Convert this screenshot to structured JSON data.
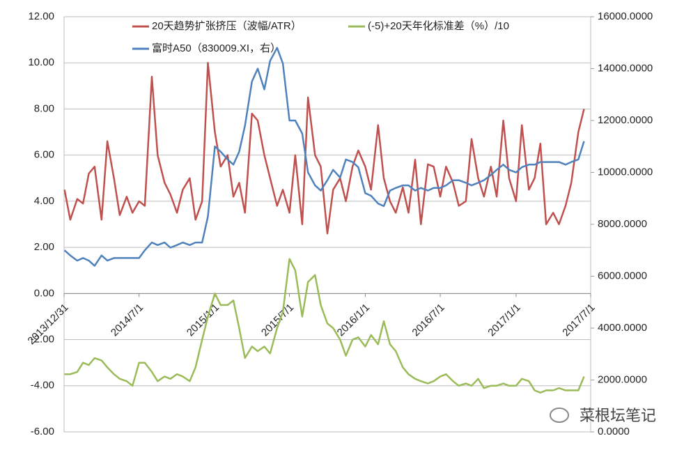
{
  "chart_data": {
    "type": "line",
    "x": [
      "2014/1/1",
      "2014/1/15",
      "2014/2/1",
      "2014/2/15",
      "2014/3/1",
      "2014/3/15",
      "2014/4/1",
      "2014/4/15",
      "2014/5/1",
      "2014/5/15",
      "2014/6/1",
      "2014/6/15",
      "2014/7/1",
      "2014/7/15",
      "2014/8/1",
      "2014/8/15",
      "2014/9/1",
      "2014/9/15",
      "2014/10/1",
      "2014/10/15",
      "2014/11/1",
      "2014/11/15",
      "2014/12/1",
      "2014/12/15",
      "2015/1/1",
      "2015/1/15",
      "2015/2/1",
      "2015/2/15",
      "2015/3/1",
      "2015/3/15",
      "2015/4/1",
      "2015/4/15",
      "2015/5/1",
      "2015/5/15",
      "2015/6/1",
      "2015/6/15",
      "2015/7/1",
      "2015/7/15",
      "2015/8/1",
      "2015/8/15",
      "2015/9/1",
      "2015/9/15",
      "2015/10/1",
      "2015/10/15",
      "2015/11/1",
      "2015/11/15",
      "2015/12/1",
      "2015/12/15",
      "2016/1/1",
      "2016/1/15",
      "2016/2/1",
      "2016/2/15",
      "2016/3/1",
      "2016/3/15",
      "2016/4/1",
      "2016/4/15",
      "2016/5/1",
      "2016/5/15",
      "2016/6/1",
      "2016/6/15",
      "2016/7/1",
      "2016/7/15",
      "2016/8/1",
      "2016/8/15",
      "2016/9/1",
      "2016/9/15",
      "2016/10/1",
      "2016/10/15",
      "2016/11/1",
      "2016/11/15",
      "2016/12/1",
      "2016/12/15",
      "2017/1/1",
      "2017/1/15",
      "2017/2/1",
      "2017/2/15",
      "2017/3/1",
      "2017/3/15",
      "2017/4/1",
      "2017/4/15",
      "2017/5/1",
      "2017/5/15",
      "2017/6/1",
      "2017/6/15"
    ],
    "series": [
      {
        "name": "20天趋势扩张挤压（波幅/ATR）",
        "color": "#c0504d",
        "values": [
          4.5,
          3.2,
          4.1,
          3.9,
          5.2,
          5.5,
          3.2,
          6.6,
          5.0,
          3.4,
          4.2,
          3.5,
          4.0,
          3.8,
          9.4,
          6.0,
          4.8,
          4.3,
          3.5,
          4.5,
          5.0,
          3.2,
          4.0,
          10.0,
          7.0,
          5.5,
          6.0,
          4.2,
          4.8,
          3.5,
          7.8,
          7.5,
          6.0,
          5.0,
          3.8,
          4.5,
          3.5,
          6.0,
          3.0,
          8.5,
          6.0,
          5.5,
          2.6,
          4.5,
          5.0,
          4.0,
          5.5,
          6.2,
          5.5,
          4.5,
          7.3,
          5.0,
          4.0,
          3.5,
          4.6,
          3.5,
          5.8,
          3.0,
          5.6,
          5.5,
          4.2,
          5.5,
          4.8,
          3.8,
          4.0,
          6.7,
          5.0,
          4.2,
          5.5,
          4.2,
          7.5,
          5.0,
          4.0,
          7.3,
          4.5,
          5.0,
          6.5,
          3.0,
          3.5,
          3.0,
          3.8,
          4.8,
          7.0,
          8.0
        ]
      },
      {
        "name": "(-5)+20天年化标准差（%）/10",
        "color": "#9bbb59",
        "values": [
          -3.5,
          -3.5,
          -3.4,
          -3.0,
          -3.1,
          -2.8,
          -2.9,
          -3.2,
          -3.5,
          -3.7,
          -3.8,
          -4.0,
          -3.0,
          -3.0,
          -3.4,
          -3.8,
          -3.6,
          -3.7,
          -3.5,
          -3.6,
          -3.8,
          -3.2,
          -2.0,
          -1.0,
          0.0,
          -0.5,
          -0.5,
          -0.3,
          -1.5,
          -2.8,
          -2.3,
          -2.5,
          -2.3,
          -2.6,
          -1.5,
          -0.8,
          1.5,
          1.0,
          -1.0,
          0.5,
          0.8,
          -0.5,
          -1.3,
          -1.5,
          -2.0,
          -2.7,
          -2.0,
          -1.9,
          -2.3,
          -1.8,
          -2.2,
          -1.2,
          -2.2,
          -2.5,
          -3.2,
          -3.5,
          -3.7,
          -3.8,
          -3.9,
          -3.8,
          -3.6,
          -3.5,
          -3.8,
          -4.0,
          -3.9,
          -4.0,
          -3.7,
          -4.1,
          -4.0,
          -4.0,
          -3.9,
          -4.0,
          -4.0,
          -3.7,
          -3.8,
          -4.2,
          -4.3,
          -4.2,
          -4.2,
          -4.1,
          -4.2,
          -4.2,
          -4.2,
          -3.6
        ]
      },
      {
        "name": "富时A50（830009.XI，右）",
        "color": "#4f81bd",
        "axis": "y2",
        "values": [
          7000,
          6800,
          6600,
          6700,
          6600,
          6400,
          6800,
          6600,
          6700,
          6700,
          6700,
          6700,
          6700,
          7000,
          7300,
          7200,
          7300,
          7100,
          7200,
          7300,
          7200,
          7300,
          7300,
          8300,
          11000,
          10800,
          10500,
          10300,
          10800,
          11800,
          13500,
          14000,
          13200,
          14300,
          14800,
          14200,
          12000,
          12000,
          11500,
          10000,
          9500,
          9300,
          9700,
          10100,
          9800,
          10500,
          10400,
          10200,
          9200,
          9100,
          8800,
          8700,
          9300,
          9400,
          9500,
          9500,
          9300,
          9400,
          9300,
          9400,
          9400,
          9500,
          9700,
          9700,
          9600,
          9500,
          9600,
          9700,
          9900,
          10100,
          10300,
          10100,
          10000,
          10200,
          10300,
          10300,
          10400,
          10400,
          10400,
          10400,
          10300,
          10400,
          10500,
          11200
        ]
      }
    ],
    "xlim": [
      "2013/12/31",
      "2017/7/1"
    ],
    "xticks": [
      "2013/12/31",
      "2014/7/1",
      "2015/1/1",
      "2015/7/1",
      "2016/1/1",
      "2016/7/1",
      "2017/1/1",
      "2017/7/1"
    ],
    "ylim": [
      -6,
      12
    ],
    "yticks": [
      {
        "value": -6,
        "label": "-6.00"
      },
      {
        "value": -4,
        "label": "-4.00"
      },
      {
        "value": -2,
        "label": "-2.00"
      },
      {
        "value": 0,
        "label": "0.00"
      },
      {
        "value": 2,
        "label": "2.00"
      },
      {
        "value": 4,
        "label": "4.00"
      },
      {
        "value": 6,
        "label": "6.00"
      },
      {
        "value": 8,
        "label": "8.00"
      },
      {
        "value": 10,
        "label": "10.00"
      },
      {
        "value": 12,
        "label": "12.00"
      }
    ],
    "y2lim": [
      0,
      16000
    ],
    "y2ticks": [
      {
        "value": 0,
        "label": "0.0000"
      },
      {
        "value": 2000,
        "label": "2000.0000"
      },
      {
        "value": 4000,
        "label": "4000.0000"
      },
      {
        "value": 6000,
        "label": "6000.0000"
      },
      {
        "value": 8000,
        "label": "8000.0000"
      },
      {
        "value": 10000,
        "label": "10000.0000"
      },
      {
        "value": 12000,
        "label": "12000.0000"
      },
      {
        "value": 14000,
        "label": "14000.0000"
      },
      {
        "value": 16000,
        "label": "16000.0000"
      }
    ],
    "grid": true,
    "legend": "top",
    "watermark": "菜根坛笔记"
  }
}
